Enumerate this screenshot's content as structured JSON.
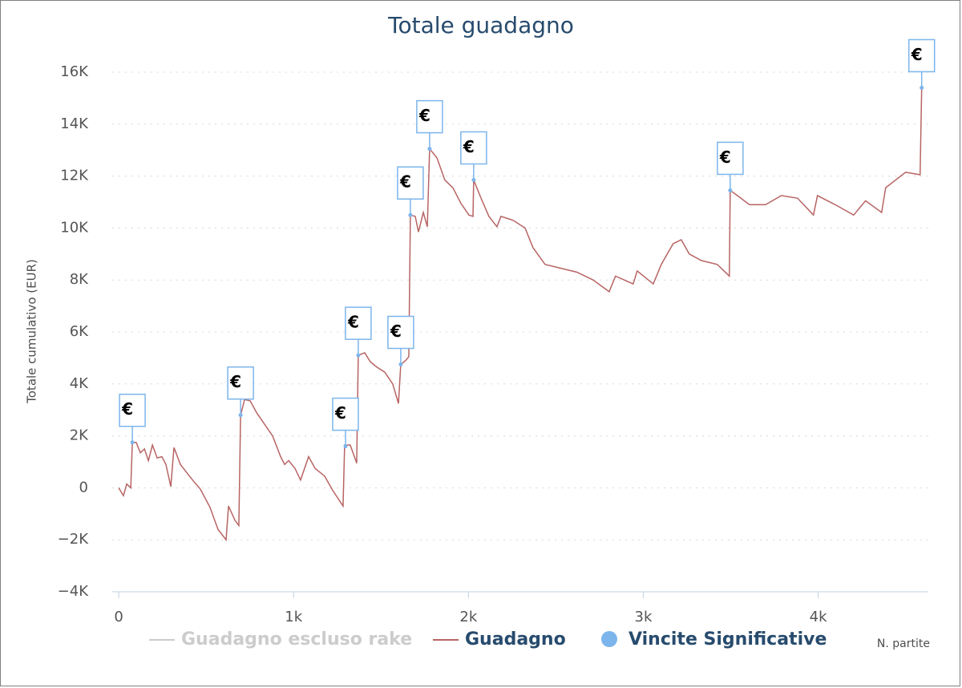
{
  "chart_data": {
    "type": "line",
    "title": "Totale guadagno",
    "x_label": "N. partite",
    "y_label": "Totale cumulativo (EUR)",
    "xlim": [
      -37,
      4630
    ],
    "ylim": [
      -4000,
      16000
    ],
    "xticks": [
      0,
      {
        "value": 1000,
        "label": "1k"
      },
      {
        "value": 2000,
        "label": "2k"
      },
      {
        "value": 3000,
        "label": "3k"
      },
      {
        "value": 4000,
        "label": "4k"
      }
    ],
    "yticks": [
      {
        "value": -4000,
        "label": "−4K"
      },
      {
        "value": -2000,
        "label": "−2K"
      },
      0,
      {
        "value": 2000,
        "label": "2K"
      },
      {
        "value": 4000,
        "label": "4K"
      },
      {
        "value": 6000,
        "label": "6K"
      },
      {
        "value": 8000,
        "label": "8K"
      },
      {
        "value": 10000,
        "label": "10K"
      },
      {
        "value": 12000,
        "label": "12K"
      },
      {
        "value": 14000,
        "label": "14K"
      },
      {
        "value": 16000,
        "label": "16K"
      }
    ],
    "grid": true,
    "series": [
      {
        "name": "Guadagno escluso rake",
        "color": "#cccccc",
        "visible": false
      },
      {
        "name": "Guadagno",
        "color": "#b86464",
        "x": [
          0,
          27,
          46,
          69,
          78,
          100,
          124,
          147,
          170,
          193,
          220,
          247,
          270,
          298,
          316,
          353,
          399,
          435,
          467,
          522,
          568,
          614,
          628,
          665,
          687,
          697,
          720,
          752,
          788,
          834,
          880,
          926,
          949,
          972,
          1008,
          1040,
          1086,
          1123,
          1178,
          1224,
          1283,
          1292,
          1324,
          1361,
          1370,
          1407,
          1439,
          1476,
          1522,
          1567,
          1600,
          1613,
          1641,
          1659,
          1668,
          1696,
          1714,
          1742,
          1765,
          1778,
          1820,
          1865,
          1911,
          1957,
          2003,
          2026,
          2030,
          2072,
          2117,
          2163,
          2186,
          2255,
          2324,
          2369,
          2438,
          2530,
          2621,
          2713,
          2805,
          2841,
          2942,
          2965,
          3057,
          3103,
          3171,
          3217,
          3263,
          3332,
          3423,
          3492,
          3497,
          3538,
          3607,
          3699,
          3790,
          3882,
          3973,
          3996,
          4111,
          4203,
          4271,
          4363,
          4386,
          4500,
          4583,
          4592
        ],
        "values": [
          0,
          -300,
          150,
          0,
          1750,
          1750,
          1350,
          1500,
          1050,
          1650,
          1150,
          1200,
          900,
          50,
          1550,
          900,
          500,
          200,
          -50,
          -750,
          -1600,
          -2000,
          -700,
          -1250,
          -1450,
          2800,
          3400,
          3350,
          2900,
          2450,
          2000,
          1200,
          900,
          1050,
          750,
          300,
          1200,
          750,
          450,
          -100,
          -700,
          1650,
          1650,
          950,
          5100,
          5200,
          4850,
          4650,
          4450,
          4000,
          3250,
          4750,
          4900,
          5050,
          10500,
          10450,
          9850,
          10600,
          10050,
          13050,
          12700,
          11850,
          11550,
          10950,
          10500,
          10450,
          11850,
          11150,
          10450,
          10050,
          10450,
          10300,
          10000,
          9250,
          8600,
          8450,
          8300,
          8000,
          7550,
          8150,
          7850,
          8350,
          7850,
          8600,
          9400,
          9550,
          9000,
          8750,
          8600,
          8150,
          11450,
          11250,
          10900,
          10900,
          11250,
          11150,
          10500,
          11250,
          10850,
          10500,
          11050,
          10600,
          11550,
          12150,
          12050,
          15400
        ]
      },
      {
        "name": "Vincite Significative",
        "color": "#7cb5ec",
        "flag_label": "€",
        "x": [
          78,
          697,
          1297,
          1370,
          1613,
          1668,
          1778,
          2030,
          3497,
          4592
        ],
        "values": [
          1750,
          2800,
          1600,
          5100,
          4750,
          10500,
          13050,
          11850,
          11450,
          15400
        ]
      }
    ]
  }
}
